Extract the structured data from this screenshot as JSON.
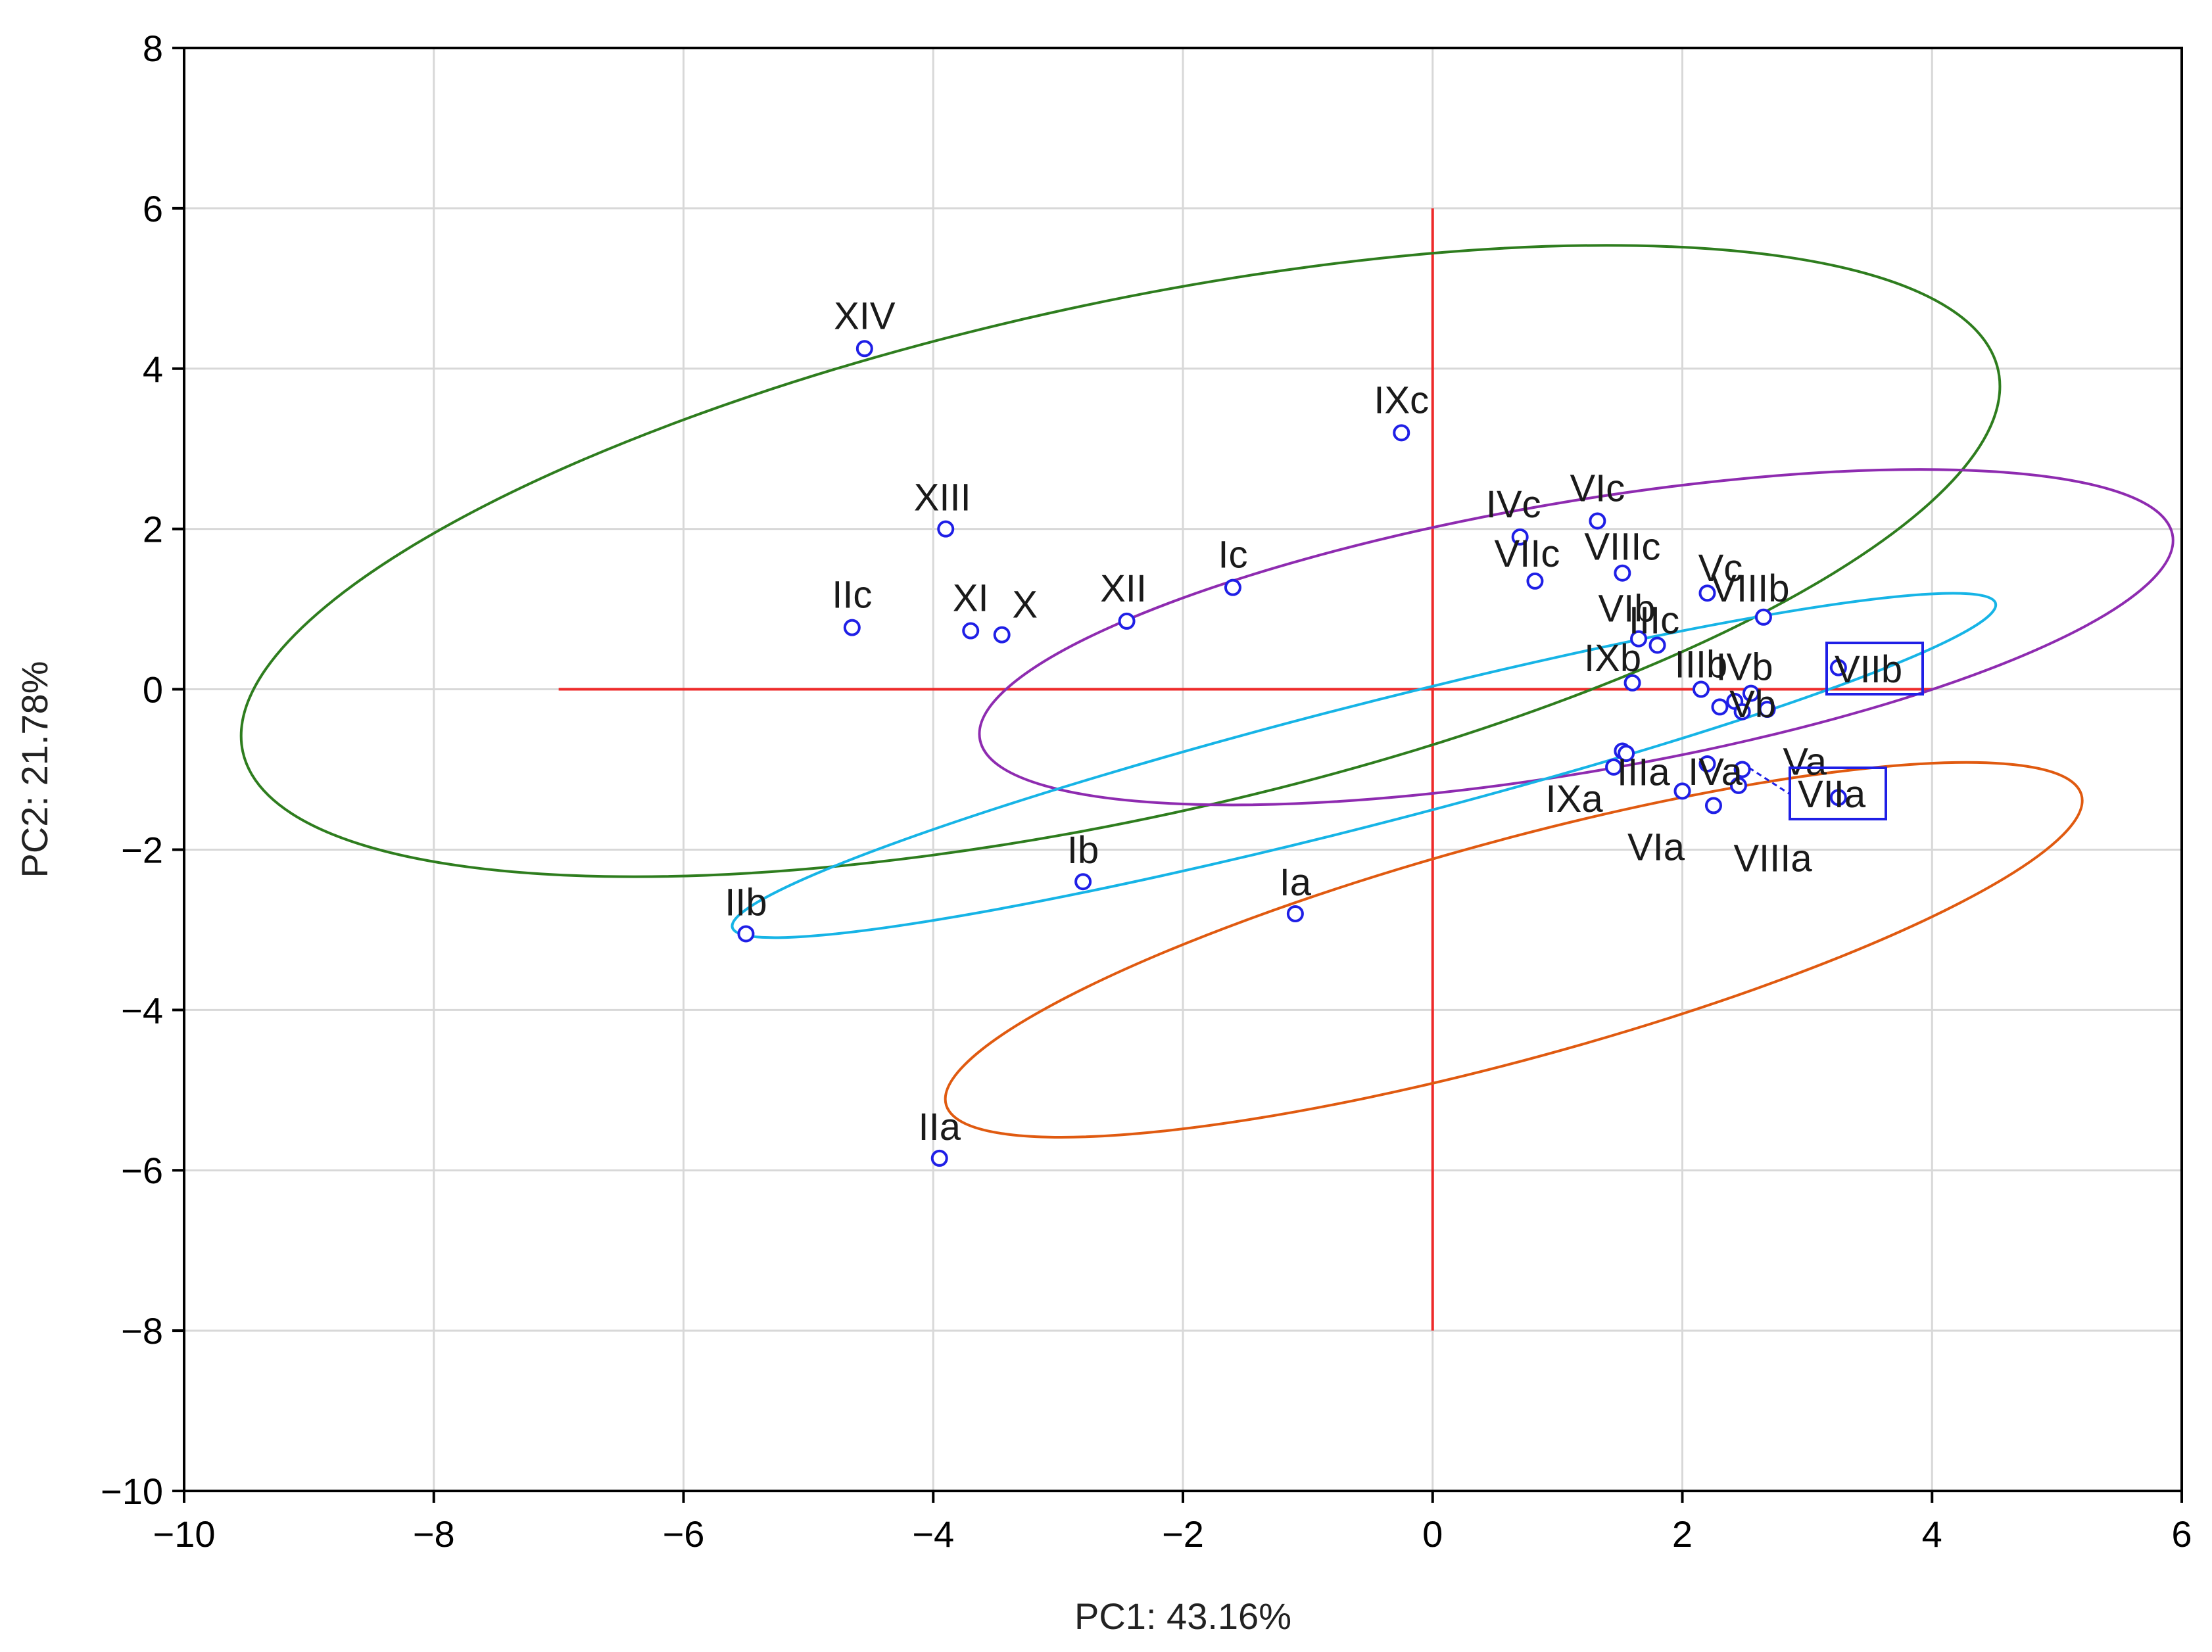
{
  "chart_data": {
    "type": "scatter",
    "title": "",
    "xlabel": "PC1: 43.16%",
    "ylabel": "PC2: 21.78%",
    "xlim": [
      -10,
      6
    ],
    "ylim": [
      -10,
      8
    ],
    "xticks": [
      -10,
      -8,
      -6,
      -4,
      -2,
      0,
      2,
      4,
      6
    ],
    "yticks": [
      -10,
      -8,
      -6,
      -4,
      -2,
      0,
      2,
      4,
      6,
      8
    ],
    "xtick_labels": [
      "−10",
      "−8",
      "−6",
      "−4",
      "−2",
      "0",
      "2",
      "4",
      "6"
    ],
    "ytick_labels": [
      "−10",
      "−8",
      "−6",
      "−4",
      "−2",
      "0",
      "2",
      "4",
      "6",
      "8"
    ],
    "grid": true,
    "marker_color": "#1f1fe6",
    "reference_lines": {
      "color": "#ee2a2a",
      "horizontal": {
        "y": 0,
        "x_from": -7,
        "x_to": 4
      },
      "vertical": {
        "x": 0,
        "y_from": -8,
        "y_to": 6
      }
    },
    "points": [
      {
        "label": "XIV",
        "x": -4.55,
        "y": 4.25
      },
      {
        "label": "IXc",
        "x": -0.25,
        "y": 3.2
      },
      {
        "label": "XIII",
        "x": -3.9,
        "y": 2.0
      },
      {
        "label": "IIc",
        "x": -4.65,
        "y": 0.77
      },
      {
        "label": "XI",
        "x": -3.7,
        "y": 0.73
      },
      {
        "label": "X",
        "x": -3.45,
        "y": 0.68
      },
      {
        "label": "XII",
        "x": -2.45,
        "y": 0.85
      },
      {
        "label": "Ic",
        "x": -1.6,
        "y": 1.27
      },
      {
        "label": "IVc",
        "x": 0.7,
        "y": 1.9
      },
      {
        "label": "VIc",
        "x": 1.32,
        "y": 2.1
      },
      {
        "label": "VIIc",
        "x": 0.82,
        "y": 1.35
      },
      {
        "label": "VIIIc",
        "x": 1.52,
        "y": 1.45
      },
      {
        "label": "Vc",
        "x": 2.2,
        "y": 1.2
      },
      {
        "label": "VIIIb",
        "x": 2.65,
        "y": 0.9
      },
      {
        "label": "VIb",
        "x": 1.65,
        "y": 0.63
      },
      {
        "label": "IIIc",
        "x": 1.8,
        "y": 0.55
      },
      {
        "label": "IXb",
        "x": 1.6,
        "y": 0.08
      },
      {
        "label": "IIIb",
        "x": 2.15,
        "y": 0.0
      },
      {
        "label": "IVb",
        "x": 2.55,
        "y": -0.05
      },
      {
        "label": "Vb",
        "x": 2.68,
        "y": -0.25
      },
      {
        "label": "VIIb",
        "x": 3.25,
        "y": 0.27
      },
      {
        "label": "IXa",
        "x": 1.45,
        "y": -0.97
      },
      {
        "label": "IIIa",
        "x": 1.52,
        "y": -0.77
      },
      {
        "label": "IVa",
        "x": 2.2,
        "y": -0.93
      },
      {
        "label": "VIa",
        "x": 2.0,
        "y": -1.27
      },
      {
        "label": "VIIIa",
        "x": 2.25,
        "y": -1.45
      },
      {
        "label": "Va",
        "x": 2.48,
        "y": -1.0
      },
      {
        "label": "VIIa",
        "x": 3.25,
        "y": -1.35
      },
      {
        "label": "Ib",
        "x": -2.8,
        "y": -2.4
      },
      {
        "label": "Ia",
        "x": -1.1,
        "y": -2.8
      },
      {
        "label": "IIb",
        "x": -5.5,
        "y": -3.05
      },
      {
        "label": "IIa",
        "x": -3.95,
        "y": -5.85
      }
    ],
    "extra_markers": [
      {
        "x": 2.3,
        "y": -0.22
      },
      {
        "x": 2.42,
        "y": -0.15
      },
      {
        "x": 2.48,
        "y": -0.28
      },
      {
        "x": 2.45,
        "y": -1.2
      },
      {
        "x": 1.55,
        "y": -0.8
      }
    ],
    "ellipses": [
      {
        "name": "green",
        "color": "#2e7d1e",
        "cx": -2.5,
        "cy": 1.6,
        "rx": 7.45,
        "ry": 3.1,
        "angle_deg": 21
      },
      {
        "name": "purple",
        "color": "#8e2bb0",
        "cx": 1.15,
        "cy": 0.65,
        "rx": 4.95,
        "ry": 1.65,
        "angle_deg": 16
      },
      {
        "name": "cyan",
        "color": "#16b4e6",
        "cx": -0.55,
        "cy": -0.95,
        "rx": 5.45,
        "ry": 0.72,
        "angle_deg": 22
      },
      {
        "name": "orange",
        "color": "#e05a10",
        "cx": 0.65,
        "cy": -3.25,
        "rx": 4.95,
        "ry": 1.3,
        "angle_deg": 24
      }
    ]
  }
}
